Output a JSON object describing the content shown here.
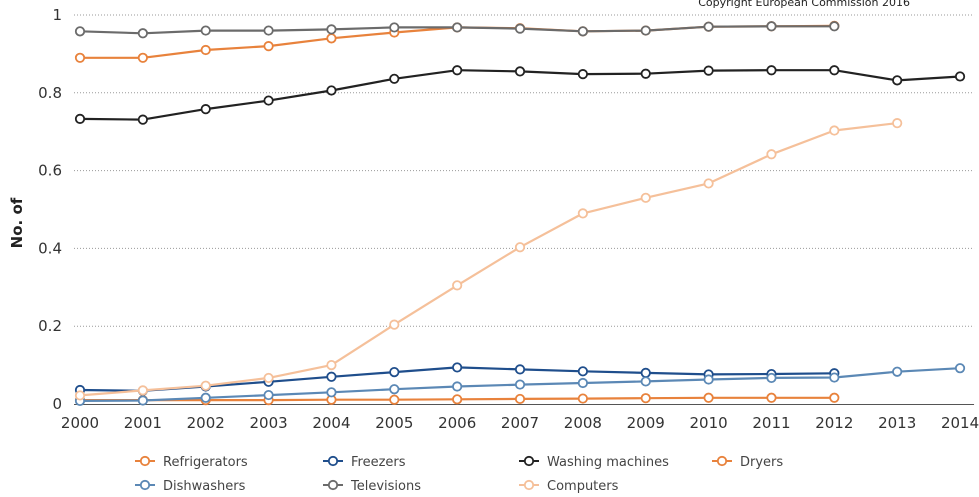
{
  "copyright": "Copyright European Commission 2016",
  "chart_data": {
    "type": "line",
    "ylabel": "No. of",
    "xlabel": "",
    "ylim": [
      0,
      1
    ],
    "yticks": [
      "0",
      "0.2",
      "0.4",
      "0.6",
      "0.8",
      "1"
    ],
    "categories": [
      "2000",
      "2001",
      "2002",
      "2003",
      "2004",
      "2005",
      "2006",
      "2007",
      "2008",
      "2009",
      "2010",
      "2011",
      "2012",
      "2013",
      "2014"
    ],
    "grid": true,
    "legend_position": "bottom",
    "series": [
      {
        "name": "Refrigerators",
        "color": "#e8823c",
        "values": [
          0.89,
          0.89,
          0.91,
          0.92,
          0.94,
          0.955,
          0.968,
          0.966,
          0.958,
          0.96,
          0.97,
          0.971,
          0.972,
          null,
          null
        ]
      },
      {
        "name": "Freezers",
        "color": "#1f4e8c",
        "values": [
          0.036,
          0.034,
          0.045,
          0.057,
          0.07,
          0.082,
          0.094,
          0.089,
          0.084,
          0.08,
          0.076,
          0.077,
          0.079,
          null,
          null
        ]
      },
      {
        "name": "Washing machines",
        "color": "#222222",
        "values": [
          0.733,
          0.731,
          0.758,
          0.78,
          0.806,
          0.836,
          0.858,
          0.855,
          0.848,
          0.849,
          0.857,
          0.858,
          0.858,
          0.832,
          0.842
        ]
      },
      {
        "name": "Dryers",
        "color": "#e8823c",
        "values": [
          0.01,
          0.01,
          0.01,
          0.01,
          0.011,
          0.011,
          0.012,
          0.013,
          0.014,
          0.015,
          0.016,
          0.016,
          0.016,
          null,
          null
        ]
      },
      {
        "name": "Dishwashers",
        "color": "#5b88b5",
        "values": [
          0.008,
          0.009,
          0.016,
          0.023,
          0.03,
          0.038,
          0.045,
          0.05,
          0.054,
          0.058,
          0.063,
          0.067,
          0.068,
          0.083,
          0.092
        ]
      },
      {
        "name": "Televisions",
        "color": "#6b6b6b",
        "values": [
          0.958,
          0.953,
          0.96,
          0.96,
          0.963,
          0.968,
          0.968,
          0.965,
          0.958,
          0.96,
          0.97,
          0.971,
          0.971,
          null,
          null
        ]
      },
      {
        "name": "Computers",
        "color": "#f5c09a",
        "values": [
          0.022,
          0.035,
          0.047,
          0.067,
          0.1,
          0.204,
          0.305,
          0.403,
          0.49,
          0.53,
          0.567,
          0.642,
          0.703,
          0.722,
          null
        ]
      }
    ]
  },
  "legend": [
    {
      "name": "Refrigerators",
      "color": "#e8823c"
    },
    {
      "name": "Freezers",
      "color": "#1f4e8c"
    },
    {
      "name": "Washing machines",
      "color": "#222222"
    },
    {
      "name": "Dryers",
      "color": "#e8823c"
    },
    {
      "name": "Dishwashers",
      "color": "#5b88b5"
    },
    {
      "name": "Televisions",
      "color": "#6b6b6b"
    },
    {
      "name": "Computers",
      "color": "#f5c09a"
    }
  ]
}
